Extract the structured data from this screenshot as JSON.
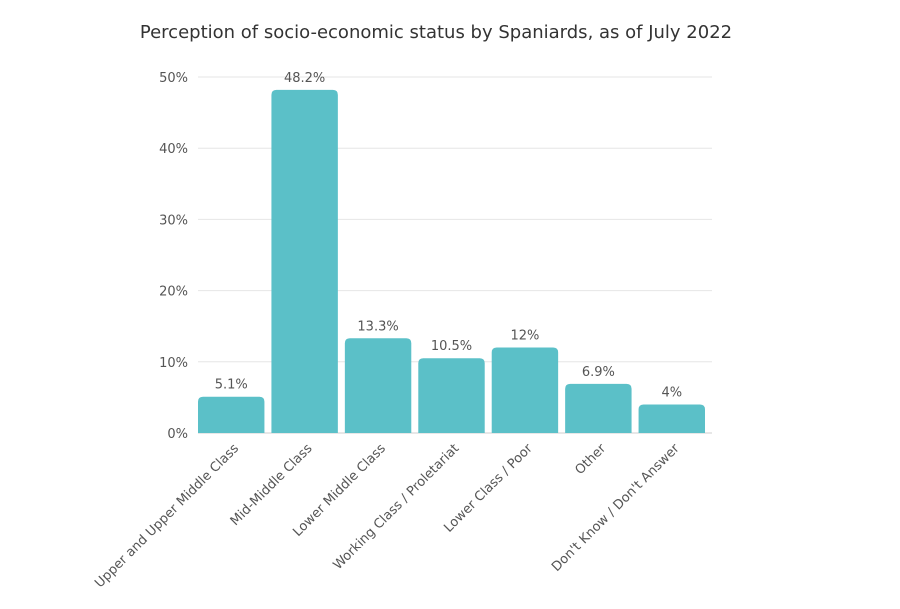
{
  "chart_data": {
    "type": "bar",
    "title": "Perception of socio-economic status by Spaniards, as of July 2022",
    "xlabel": "",
    "ylabel": "",
    "categories": [
      "Upper and Upper Middle Class",
      "Mid-Middle Class",
      "Lower Middle Class",
      "Working Class / Proletariat",
      "Lower Class / Poor",
      "Other",
      "Don't Know / Don't Answer"
    ],
    "values": [
      5.1,
      48.2,
      13.3,
      10.5,
      12,
      6.9,
      4
    ],
    "value_labels": [
      "5.1%",
      "48.2%",
      "13.3%",
      "10.5%",
      "12%",
      "6.9%",
      "4%"
    ],
    "yticks": [
      0,
      10,
      20,
      30,
      40,
      50
    ],
    "ytick_labels": [
      "0%",
      "10%",
      "20%",
      "30%",
      "40%",
      "50%"
    ],
    "ylim": [
      0,
      50
    ],
    "grid": true,
    "bar_color": "#5bc0c8"
  }
}
